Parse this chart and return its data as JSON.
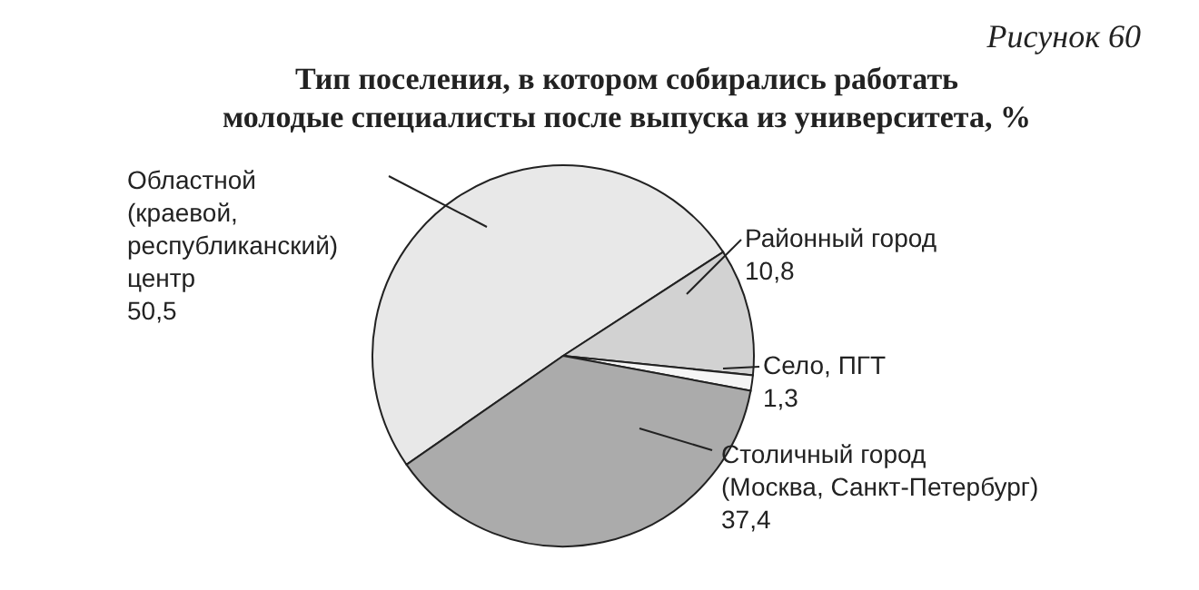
{
  "chart_data": {
    "type": "pie",
    "title": "Тип поселения, в котором собирались работать\nмолодые специалисты после выпуска из университета, %",
    "annotations": [
      "Рисунок 60"
    ],
    "categories": [
      "Областной\n(краевой,\nреспубликанский)\nцентр",
      "Районный город",
      "Село, ПГТ",
      "Столичный город\n(Москва, Санкт-Петербург)"
    ],
    "values": [
      50.5,
      10.8,
      1.3,
      37.4
    ],
    "colors": [
      "#e8e8e8",
      "#d2d2d2",
      "#f5f5f5",
      "#ababab"
    ],
    "value_labels": [
      "50,5",
      "10,8",
      "1,3",
      "37,4"
    ],
    "legend": false
  }
}
